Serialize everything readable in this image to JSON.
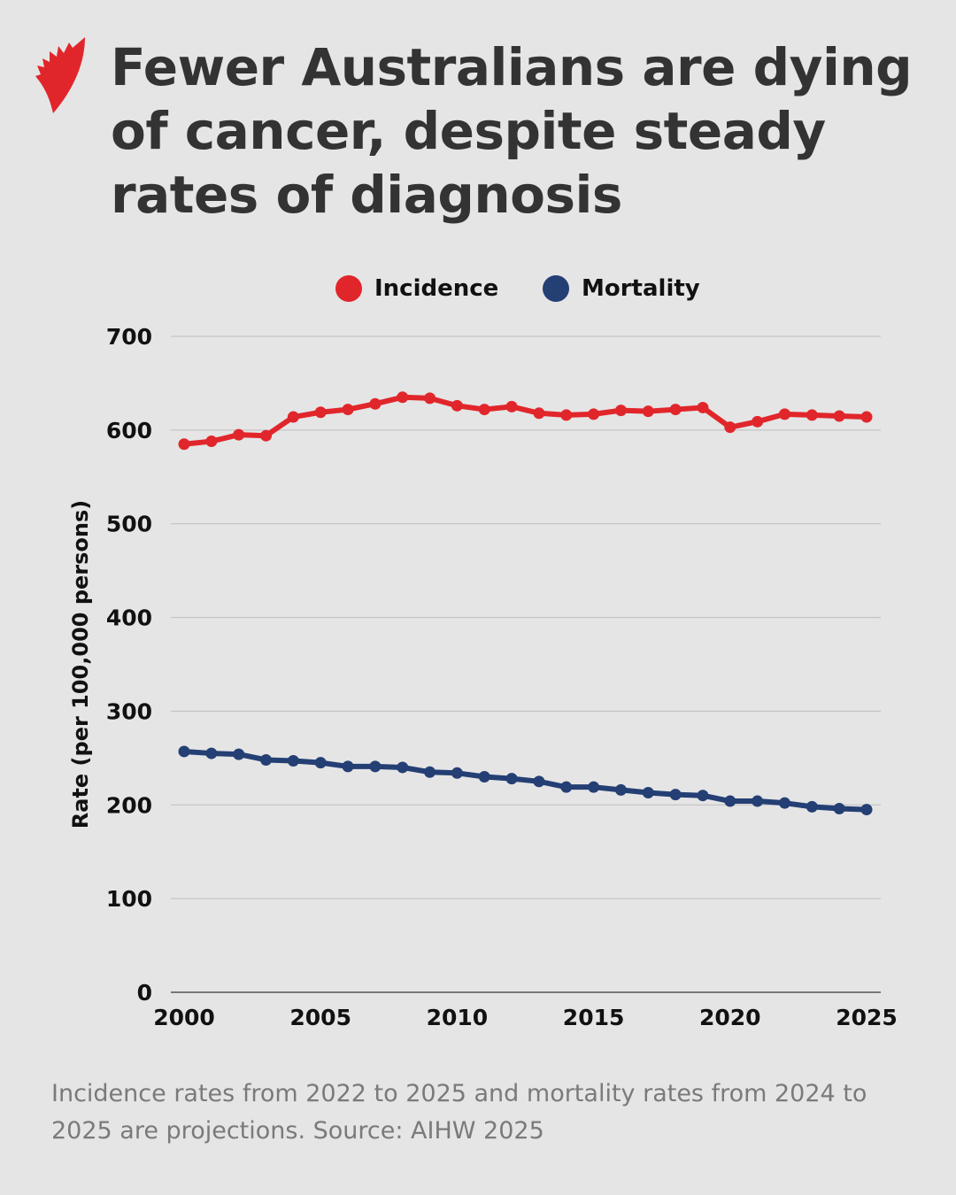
{
  "title": "Fewer Australians are dying of cancer, despite steady rates of diagnosis",
  "footnote": "Incidence rates from 2022 to 2025 and mortality rates from 2024 to 2025 are projections. Source: AIHW 2025",
  "logo": "SBS",
  "colors": {
    "incidence": "#e1262b",
    "mortality": "#243f74",
    "grid": "#bdbdbd",
    "background": "#e5e5e5"
  },
  "chart_data": {
    "type": "line",
    "ylabel": "Rate (per 100,000 persons)",
    "xlabel": "",
    "ylim": [
      0,
      700
    ],
    "yticks": [
      0,
      100,
      200,
      300,
      400,
      500,
      600,
      700
    ],
    "xticks": [
      2000,
      2005,
      2010,
      2015,
      2020,
      2025
    ],
    "grid": true,
    "legend": "top-center",
    "x": [
      2000,
      2001,
      2002,
      2003,
      2004,
      2005,
      2006,
      2007,
      2008,
      2009,
      2010,
      2011,
      2012,
      2013,
      2014,
      2015,
      2016,
      2017,
      2018,
      2019,
      2020,
      2021,
      2022,
      2023,
      2024,
      2025
    ],
    "series": [
      {
        "name": "Incidence",
        "values": [
          585,
          588,
          595,
          594,
          614,
          619,
          622,
          628,
          635,
          634,
          626,
          622,
          625,
          618,
          616,
          617,
          621,
          620,
          622,
          624,
          603,
          609,
          617,
          616,
          615,
          614
        ]
      },
      {
        "name": "Mortality",
        "values": [
          257,
          255,
          254,
          248,
          247,
          245,
          241,
          241,
          240,
          235,
          234,
          230,
          228,
          225,
          219,
          219,
          216,
          213,
          211,
          210,
          204,
          204,
          202,
          198,
          196,
          195
        ]
      }
    ]
  }
}
